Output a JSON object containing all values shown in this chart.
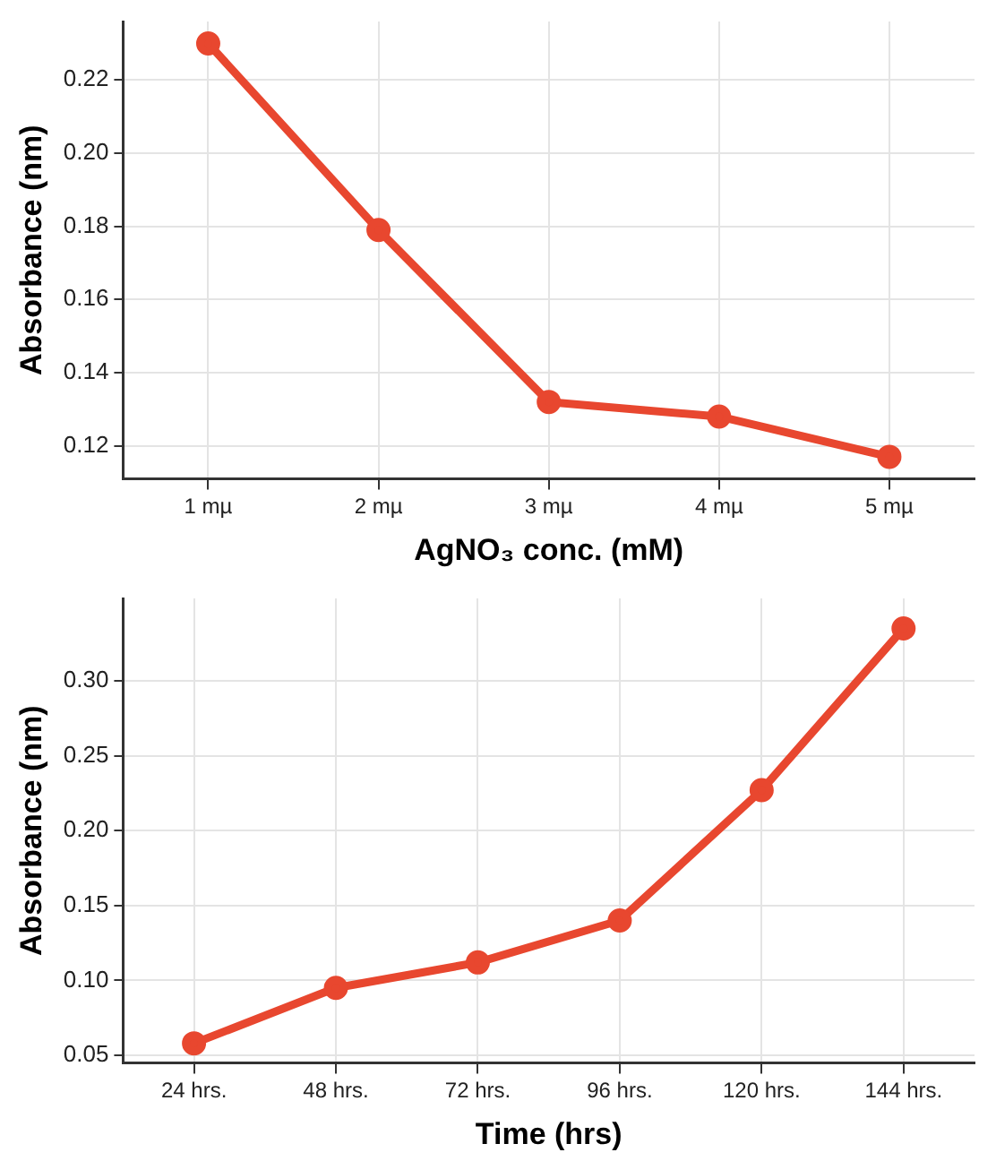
{
  "chart_data": [
    {
      "type": "line",
      "xlabel": "AgNO₃ conc. (mM)",
      "ylabel": "Absorbance (nm)",
      "categories": [
        "1 mµ",
        "2 mµ",
        "3 mµ",
        "4 mµ",
        "5 mµ"
      ],
      "series": [
        {
          "color": "#e8472f",
          "values": [
            0.23,
            0.179,
            0.132,
            0.128,
            0.117
          ]
        }
      ],
      "ylim": [
        0.111,
        0.236
      ],
      "yticks": [
        {
          "value": 0.12,
          "label": "0.12"
        },
        {
          "value": 0.14,
          "label": "0.14"
        },
        {
          "value": 0.16,
          "label": "0.16"
        },
        {
          "value": 0.18,
          "label": "0.18"
        },
        {
          "value": 0.2,
          "label": "0.20"
        },
        {
          "value": 0.22,
          "label": "0.22"
        }
      ],
      "grid": true,
      "marker": "circle",
      "line_style": "solid"
    },
    {
      "type": "line",
      "xlabel": "Time (hrs)",
      "ylabel": "Absorbance (nm)",
      "categories": [
        "24 hrs.",
        "48 hrs.",
        "72 hrs.",
        "96 hrs.",
        "120 hrs.",
        "144 hrs."
      ],
      "series": [
        {
          "color": "#e8472f",
          "values": [
            0.058,
            0.095,
            0.112,
            0.14,
            0.227,
            0.335
          ]
        }
      ],
      "ylim": [
        0.045,
        0.355
      ],
      "yticks": [
        {
          "value": 0.05,
          "label": "0.05"
        },
        {
          "value": 0.1,
          "label": "0.10"
        },
        {
          "value": 0.15,
          "label": "0.15"
        },
        {
          "value": 0.2,
          "label": "0.20"
        },
        {
          "value": 0.25,
          "label": "0.25"
        },
        {
          "value": 0.3,
          "label": "0.30"
        }
      ],
      "grid": true,
      "marker": "circle",
      "line_style": "solid"
    }
  ]
}
